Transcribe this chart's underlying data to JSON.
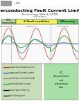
{
  "title": "Superconducting Fault Current Limiters",
  "subtitle": "Technology Watch 2008",
  "sub2": "summary",
  "bg_color": "#ffffff",
  "logo_color": "#888888",
  "header_left_color": "#b8d4a0",
  "header_center_color": "#f0f060",
  "header_right_color": "#70c870",
  "section_left_label": "S-FCL\ncharacteristics",
  "section_center_label": "S-Fault condition",
  "section_right_label": "S-Recovery",
  "bottom_left_color": "#c8deb8",
  "bottom_right_color": "#a8e0a8",
  "wave_bg": "#f9f9f9",
  "title_fontsize": 4.5,
  "subtitle_fontsize": 3.2,
  "sub2_fontsize": 3.0
}
